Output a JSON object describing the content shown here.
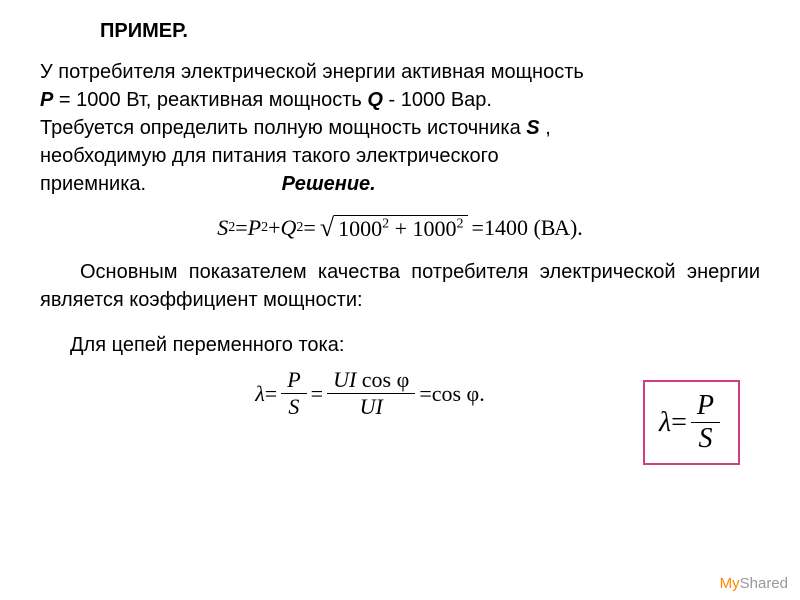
{
  "title": "ПРИМЕР.",
  "problem": {
    "line1": "У потребителя электрической энергии активная мощность",
    "line2_part1": "P",
    "line2_part2": " = 1000 Вт, реактивная мощность ",
    "line2_q": "Q",
    "line2_part3": "  - 1000 Вар.",
    "line3": "Требуется определить полную мощность источника ",
    "line3_s": "S",
    "line3_end": " ,",
    "line4": "необходимую для питания такого электрического",
    "line5": "приемника.",
    "solution_label": "Решение."
  },
  "formula1": {
    "s2": "S",
    "eq1": " = ",
    "p2": "P",
    "plus": " + ",
    "q2": "Q",
    "eq2": " = ",
    "sqrt_content": "1000² + 1000²",
    "eq3": " = 1400 (ВА).",
    "v1000a": "1000",
    "v1000b": "1000",
    "result": "1400",
    "unit": "(ВА)"
  },
  "quality_text": "Основным показателем качества потребителя электрической энергии является коэффициент мощности:",
  "lambda_formula": {
    "lambda": "λ",
    "eq": " = ",
    "num": "P",
    "den": "S"
  },
  "ac_label": "Для цепей переменного тока:",
  "formula_ac": {
    "lambda": "λ",
    "frac1_num": "P",
    "frac1_den": "S",
    "frac2_num": "UI cos φ",
    "frac2_den": "UI",
    "result": "cos φ."
  },
  "watermark": {
    "my": "My",
    "shared": "Shared"
  },
  "colors": {
    "box_border": "#d04080",
    "text": "#000000",
    "background": "#ffffff",
    "watermark_gray": "#999999",
    "watermark_orange": "#ff8800"
  }
}
